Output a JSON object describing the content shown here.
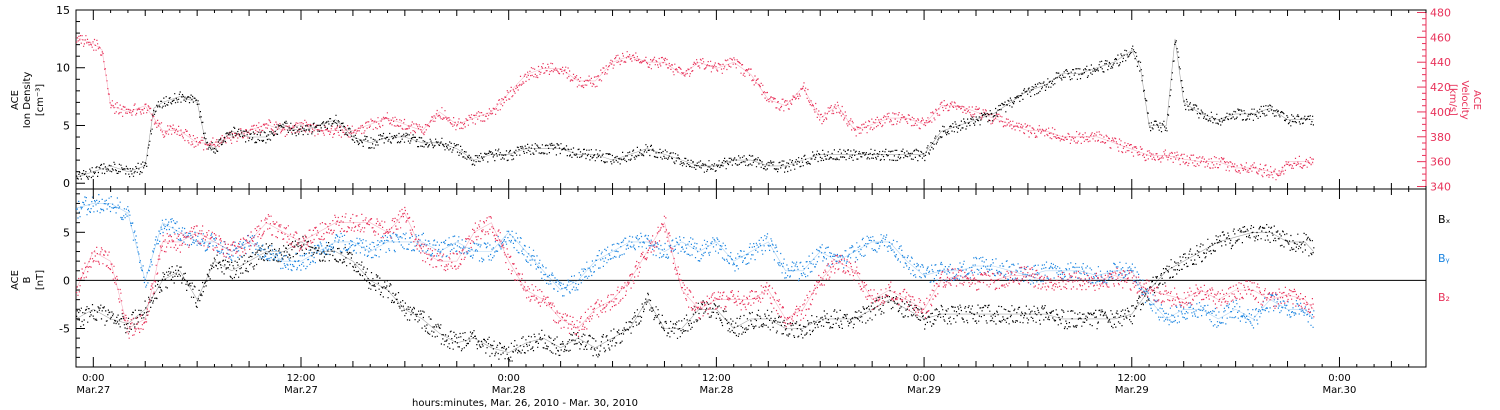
{
  "colors": {
    "black": "#000000",
    "pink": "#e8325a",
    "blue": "#1a84e0"
  },
  "xaxis": {
    "title": "hours:minutes, Mar. 26, 2010 - Mar. 30, 2010",
    "ticks": [
      {
        "hour": 0,
        "time": "0:00",
        "date": "Mar.27"
      },
      {
        "hour": 12,
        "time": "12:00",
        "date": "Mar.27"
      },
      {
        "hour": 24,
        "time": "0:00",
        "date": "Mar.28"
      },
      {
        "hour": 36,
        "time": "12:00",
        "date": "Mar.28"
      },
      {
        "hour": 48,
        "time": "0:00",
        "date": "Mar.29"
      },
      {
        "hour": 60,
        "time": "12:00",
        "date": "Mar.29"
      },
      {
        "hour": 72,
        "time": "0:00",
        "date": "Mar.30"
      }
    ],
    "range_hours": [
      -1,
      77
    ]
  },
  "chart_data": [
    {
      "type": "scatter",
      "panel": "top",
      "ylabel_left": [
        "ACE",
        "Ion Density",
        "[cm⁻³]"
      ],
      "ylabel_right": [
        "ACE",
        "Velocity",
        "[km/s]"
      ],
      "ylim_left": [
        -0.5,
        15
      ],
      "yticks_left": [
        0,
        5,
        10,
        15
      ],
      "ylim_right": [
        338,
        482
      ],
      "yticks_right": [
        340,
        360,
        380,
        400,
        420,
        440,
        460,
        480
      ],
      "series": [
        {
          "axis": "left",
          "color": "black",
          "x": [
            -1,
            0,
            1,
            2,
            3,
            3.5,
            4,
            5,
            6,
            6.5,
            7,
            8,
            9,
            10,
            11,
            12,
            13,
            14,
            15,
            16,
            17,
            18,
            19,
            20,
            21,
            22,
            23,
            24,
            25,
            26,
            27,
            28,
            29,
            30,
            31,
            32,
            33,
            34,
            35,
            36,
            37,
            38,
            39,
            40,
            41,
            42,
            43,
            44,
            45,
            46,
            47,
            48,
            49,
            50,
            51,
            52,
            53,
            54,
            55,
            56,
            57,
            58,
            59,
            60,
            60.5,
            61,
            62,
            62.5,
            63,
            64,
            65,
            66,
            67,
            68,
            69,
            70,
            70.5
          ],
          "y": [
            0.5,
            1,
            1.5,
            1,
            1.5,
            6.5,
            7,
            7.5,
            7,
            3.5,
            3,
            4.5,
            4,
            4,
            5,
            4.5,
            5,
            5.5,
            4,
            3.5,
            4,
            4,
            3.5,
            3.5,
            3,
            2,
            2.5,
            2.5,
            3,
            3,
            3,
            2.5,
            2.5,
            2,
            2.5,
            3,
            2.5,
            2,
            1.5,
            1.5,
            2,
            2,
            1.5,
            1.5,
            2,
            2.5,
            2.5,
            2.5,
            2.5,
            2.5,
            2.5,
            2.5,
            4.5,
            5,
            5.5,
            6,
            7,
            8,
            8.5,
            9.5,
            9.5,
            10,
            10.5,
            11.5,
            10,
            5,
            5,
            12.5,
            7,
            6,
            5.5,
            6,
            6,
            6.5,
            5.5,
            5.5,
            5.5
          ]
        },
        {
          "axis": "right",
          "color": "pink",
          "x": [
            -1,
            0,
            0.5,
            1,
            2,
            3,
            4,
            5,
            6,
            7,
            8,
            9,
            10,
            11,
            12,
            13,
            14,
            15,
            16,
            17,
            18,
            19,
            20,
            21,
            22,
            23,
            24,
            25,
            26,
            27,
            28,
            29,
            30,
            31,
            32,
            33,
            34,
            35,
            36,
            37,
            38,
            39,
            40,
            41,
            42,
            43,
            44,
            45,
            46,
            47,
            48,
            49,
            50,
            51,
            52,
            53,
            54,
            55,
            56,
            57,
            58,
            59,
            60,
            61,
            62,
            63,
            64,
            65,
            66,
            67,
            68,
            68.5,
            69,
            70,
            70.5
          ],
          "y": [
            460,
            455,
            450,
            405,
            400,
            405,
            385,
            385,
            375,
            375,
            380,
            385,
            390,
            385,
            390,
            385,
            385,
            385,
            390,
            395,
            390,
            385,
            400,
            390,
            395,
            400,
            415,
            430,
            435,
            435,
            425,
            425,
            440,
            445,
            440,
            440,
            430,
            440,
            435,
            440,
            430,
            410,
            405,
            420,
            395,
            405,
            385,
            390,
            395,
            395,
            390,
            405,
            405,
            400,
            395,
            390,
            385,
            385,
            380,
            380,
            380,
            375,
            370,
            365,
            365,
            362,
            360,
            360,
            355,
            355,
            352,
            350,
            360,
            360,
            358
          ]
        }
      ]
    },
    {
      "type": "scatter",
      "panel": "bottom",
      "ylabel_left": [
        "ACE",
        "B",
        "[nT]"
      ],
      "ylim": [
        -9,
        9.5
      ],
      "yticks": [
        -5,
        0,
        5
      ],
      "zero_line": true,
      "legend": [
        "Bₓ",
        "Bᵧ",
        "B₂"
      ],
      "series": [
        {
          "name": "Bₓ",
          "color": "black",
          "x": [
            -1,
            0,
            1,
            2,
            3,
            4,
            5,
            6,
            7,
            8,
            9,
            10,
            11,
            12,
            13,
            14,
            15,
            16,
            17,
            18,
            19,
            20,
            21,
            22,
            23,
            24,
            25,
            26,
            27,
            28,
            29,
            30,
            31,
            32,
            33,
            34,
            35,
            36,
            37,
            38,
            39,
            40,
            41,
            42,
            43,
            44,
            45,
            46,
            47,
            48,
            49,
            50,
            51,
            52,
            53,
            54,
            55,
            56,
            57,
            58,
            59,
            60,
            61,
            62,
            63,
            64,
            65,
            66,
            67,
            68,
            69,
            70,
            70.5
          ],
          "y": [
            -4,
            -3,
            -4,
            -4.5,
            -3,
            0,
            1,
            -2,
            2,
            1,
            2,
            3,
            3,
            4,
            3,
            3,
            2,
            0,
            -1,
            -3,
            -4,
            -5.5,
            -6.5,
            -6,
            -7,
            -7.5,
            -6.5,
            -6,
            -7,
            -6,
            -7,
            -6,
            -5,
            -2,
            -5,
            -5,
            -3,
            -3,
            -5,
            -4,
            -4,
            -5,
            -5,
            -4,
            -4,
            -4,
            -3,
            -2,
            -3,
            -4,
            -3.5,
            -3.5,
            -3.5,
            -3.5,
            -3.5,
            -3.5,
            -3.5,
            -4,
            -4,
            -4,
            -4,
            -3.5,
            -1,
            1,
            2,
            3,
            4,
            4.5,
            5,
            5,
            4,
            4,
            3
          ]
        },
        {
          "name": "Bᵧ",
          "color": "blue",
          "x": [
            -1,
            0,
            1,
            2,
            3,
            4,
            5,
            6,
            7,
            8,
            9,
            10,
            11,
            12,
            13,
            14,
            15,
            16,
            17,
            18,
            19,
            20,
            21,
            22,
            23,
            24,
            25,
            26,
            27,
            28,
            29,
            30,
            31,
            32,
            33,
            34,
            35,
            36,
            37,
            38,
            39,
            40,
            41,
            42,
            43,
            44,
            45,
            46,
            47,
            48,
            49,
            50,
            51,
            52,
            53,
            54,
            55,
            56,
            57,
            58,
            59,
            60,
            61,
            62,
            63,
            64,
            65,
            66,
            67,
            68,
            69,
            70,
            70.5
          ],
          "y": [
            7.5,
            8,
            8,
            7,
            0,
            6,
            5,
            4,
            4,
            3,
            4,
            3,
            2,
            2,
            3,
            4,
            4,
            3,
            4,
            4,
            4,
            3,
            4,
            3,
            3,
            5,
            3,
            1,
            -1,
            0,
            2,
            3,
            4,
            4,
            3,
            4,
            3,
            4,
            2,
            3,
            4,
            1,
            1,
            3,
            2,
            3,
            4,
            4,
            2,
            0.5,
            1,
            1,
            1.5,
            1.5,
            1,
            0.5,
            1,
            1,
            1,
            0.5,
            1,
            1,
            -2,
            -4,
            -3,
            -3,
            -4,
            -3,
            -4,
            -2,
            -3,
            -3,
            -4
          ]
        },
        {
          "name": "B₂",
          "color": "pink",
          "x": [
            -1,
            0,
            1,
            2,
            3,
            4,
            5,
            6,
            7,
            8,
            9,
            10,
            11,
            12,
            13,
            14,
            15,
            16,
            17,
            18,
            19,
            20,
            21,
            22,
            23,
            24,
            25,
            26,
            27,
            28,
            29,
            30,
            31,
            32,
            33,
            34,
            35,
            36,
            37,
            38,
            39,
            40,
            41,
            42,
            43,
            44,
            45,
            46,
            47,
            48,
            49,
            50,
            51,
            52,
            53,
            54,
            55,
            56,
            57,
            58,
            59,
            60,
            61,
            62,
            63,
            64,
            65,
            66,
            67,
            68,
            69,
            70,
            70.5
          ],
          "y": [
            -1,
            3,
            2,
            -5,
            -4,
            4,
            4,
            5,
            4,
            3,
            4,
            6,
            5,
            4,
            5,
            6,
            6,
            6,
            5,
            7,
            3,
            2,
            2,
            5,
            6,
            2,
            -1,
            -2,
            -4,
            -5,
            -3,
            -2,
            0,
            3,
            6,
            -1,
            -3,
            -2,
            -2,
            -2,
            -1,
            -4,
            -3,
            0,
            2,
            1,
            -2,
            -1,
            -2,
            -3,
            0,
            0.5,
            0,
            0,
            0.5,
            0.5,
            0,
            0,
            0,
            0,
            0.5,
            0,
            -1,
            -1.5,
            -2,
            -1,
            -2,
            -1,
            -1,
            -2,
            -1.5,
            -2,
            -3
          ]
        }
      ]
    }
  ]
}
